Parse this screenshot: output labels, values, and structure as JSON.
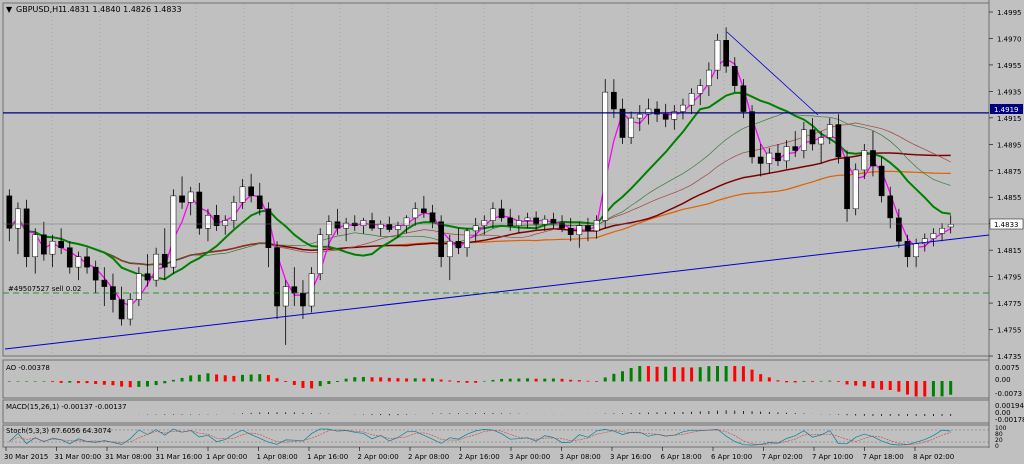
{
  "header": {
    "symbol": "GBPUSD,H1",
    "ohlc": "1.4831 1.4840 1.4826 1.4833"
  },
  "colors": {
    "background": "#c0c0c0",
    "grid": "#8f8f8f",
    "bull_body": "#ffffff",
    "bear_body": "#000000",
    "ma_fast": "#ff00ff",
    "ma_green": "#008000",
    "ma_darkred": "#800000",
    "ma_orange": "#e06000",
    "hline": "#000080",
    "trendline": "#0000cc",
    "ao_up": "#008000",
    "ao_down": "#ff0000",
    "price_tag_bg": "#ffffff"
  },
  "price_axis": {
    "ticks": [
      "1.4995",
      "1.4970",
      "1.4955",
      "1.4935",
      "1.4915",
      "1.4895",
      "1.4875",
      "1.4855",
      "1.4835",
      "1.4815",
      "1.4795",
      "1.4775",
      "1.4755",
      "1.4735"
    ],
    "hline_label": "1.4919",
    "current_label": "1.4833"
  },
  "time_axis": {
    "labels": [
      "30 Mar 2015",
      "31 Mar 00:00",
      "31 Mar 08:00",
      "31 Mar 16:00",
      "1 Apr 00:00",
      "1 Apr 08:00",
      "1 Apr 16:00",
      "2 Apr 00:00",
      "2 Apr 08:00",
      "2 Apr 16:00",
      "3 Apr 00:00",
      "3 Apr 08:00",
      "3 Apr 16:00",
      "6 Apr 18:00",
      "6 Apr 10:00",
      "7 Apr 02:00",
      "7 Apr 10:00",
      "7 Apr 18:00",
      "8 Apr 02:00"
    ]
  },
  "order_label": "#49507527 sell 0.02",
  "ao": {
    "title": "AO -0.00378",
    "ticks": [
      "0.0075",
      "0.00",
      "-0.0073"
    ]
  },
  "macd": {
    "title": "MACD(15,26,1) -0.00137 -0.00137",
    "ticks": [
      "0.00194",
      "0.00",
      "-0.00178"
    ]
  },
  "stoch": {
    "title": "Stoch(5,3,3) 67.6056 64.3074",
    "ticks": [
      "100",
      "80",
      "20",
      "0"
    ]
  },
  "chart_data": {
    "type": "candlestick",
    "price_range": [
      1.4733,
      1.5003
    ],
    "candles": [
      [
        1.4855,
        1.486,
        1.482,
        1.483
      ],
      [
        1.483,
        1.485,
        1.481,
        1.4845
      ],
      [
        1.4845,
        1.4852,
        1.48,
        1.4808
      ],
      [
        1.4808,
        1.483,
        1.4795,
        1.4825
      ],
      [
        1.4825,
        1.4835,
        1.4805,
        1.481
      ],
      [
        1.481,
        1.4825,
        1.48,
        1.482
      ],
      [
        1.482,
        1.483,
        1.481,
        1.4815
      ],
      [
        1.4815,
        1.482,
        1.4795,
        1.48
      ],
      [
        1.48,
        1.4812,
        1.479,
        1.4808
      ],
      [
        1.4808,
        1.4815,
        1.4795,
        1.48
      ],
      [
        1.48,
        1.4805,
        1.478,
        1.479
      ],
      [
        1.479,
        1.48,
        1.477,
        1.4785
      ],
      [
        1.4785,
        1.4795,
        1.4765,
        1.4775
      ],
      [
        1.4775,
        1.4785,
        1.4755,
        1.476
      ],
      [
        1.476,
        1.478,
        1.4755,
        1.4775
      ],
      [
        1.4775,
        1.48,
        1.477,
        1.4795
      ],
      [
        1.4795,
        1.481,
        1.4785,
        1.479
      ],
      [
        1.479,
        1.4815,
        1.4785,
        1.481
      ],
      [
        1.481,
        1.483,
        1.479,
        1.48
      ],
      [
        1.48,
        1.486,
        1.4795,
        1.4855
      ],
      [
        1.4855,
        1.487,
        1.4845,
        1.485
      ],
      [
        1.485,
        1.4862,
        1.484,
        1.4858
      ],
      [
        1.4858,
        1.4865,
        1.4825,
        1.483
      ],
      [
        1.483,
        1.4845,
        1.482,
        1.484
      ],
      [
        1.484,
        1.4848,
        1.4828,
        1.4832
      ],
      [
        1.4832,
        1.484,
        1.4825,
        1.4836
      ],
      [
        1.4836,
        1.4855,
        1.483,
        1.485
      ],
      [
        1.485,
        1.4868,
        1.4845,
        1.4862
      ],
      [
        1.4862,
        1.4872,
        1.485,
        1.4855
      ],
      [
        1.4855,
        1.4865,
        1.484,
        1.4845
      ],
      [
        1.4845,
        1.485,
        1.48,
        1.4815
      ],
      [
        1.4815,
        1.482,
        1.476,
        1.477
      ],
      [
        1.477,
        1.479,
        1.474,
        1.4785
      ],
      [
        1.4785,
        1.48,
        1.477,
        1.478
      ],
      [
        1.478,
        1.479,
        1.476,
        1.477
      ],
      [
        1.477,
        1.48,
        1.4765,
        1.4795
      ],
      [
        1.4795,
        1.483,
        1.479,
        1.4825
      ],
      [
        1.4825,
        1.484,
        1.4815,
        1.4835
      ],
      [
        1.4835,
        1.4845,
        1.4825,
        1.483
      ],
      [
        1.483,
        1.4838,
        1.482,
        1.4834
      ],
      [
        1.4834,
        1.484,
        1.4828,
        1.4832
      ],
      [
        1.4832,
        1.4838,
        1.4826,
        1.4836
      ],
      [
        1.4836,
        1.4842,
        1.4828,
        1.483
      ],
      [
        1.483,
        1.4836,
        1.4824,
        1.4833
      ],
      [
        1.4833,
        1.4839,
        1.4827,
        1.4829
      ],
      [
        1.4829,
        1.4835,
        1.4823,
        1.4832
      ],
      [
        1.4832,
        1.484,
        1.4826,
        1.4838
      ],
      [
        1.4838,
        1.485,
        1.4832,
        1.4845
      ],
      [
        1.4845,
        1.4855,
        1.4838,
        1.4842
      ],
      [
        1.4842,
        1.4848,
        1.483,
        1.4835
      ],
      [
        1.4835,
        1.484,
        1.48,
        1.4808
      ],
      [
        1.4808,
        1.4825,
        1.479,
        1.482
      ],
      [
        1.482,
        1.483,
        1.481,
        1.4815
      ],
      [
        1.4815,
        1.483,
        1.4808,
        1.4828
      ],
      [
        1.4828,
        1.4838,
        1.482,
        1.4832
      ],
      [
        1.4832,
        1.484,
        1.4825,
        1.4836
      ],
      [
        1.4836,
        1.485,
        1.483,
        1.4845
      ],
      [
        1.4845,
        1.4852,
        1.4835,
        1.4838
      ],
      [
        1.4838,
        1.4845,
        1.4828,
        1.4832
      ],
      [
        1.4832,
        1.484,
        1.4826,
        1.4836
      ],
      [
        1.4836,
        1.4842,
        1.483,
        1.4838
      ],
      [
        1.4838,
        1.4843,
        1.4829,
        1.4833
      ],
      [
        1.4833,
        1.484,
        1.4828,
        1.4837
      ],
      [
        1.4837,
        1.4842,
        1.483,
        1.4834
      ],
      [
        1.4834,
        1.484,
        1.4827,
        1.483
      ],
      [
        1.483,
        1.4838,
        1.482,
        1.4825
      ],
      [
        1.4825,
        1.4835,
        1.4815,
        1.4832
      ],
      [
        1.4832,
        1.4838,
        1.482,
        1.4828
      ],
      [
        1.4828,
        1.484,
        1.4822,
        1.4836
      ],
      [
        1.4836,
        1.4945,
        1.483,
        1.4935
      ],
      [
        1.4935,
        1.4945,
        1.4915,
        1.4922
      ],
      [
        1.4922,
        1.493,
        1.4895,
        1.49
      ],
      [
        1.49,
        1.492,
        1.4895,
        1.4915
      ],
      [
        1.4915,
        1.4925,
        1.4905,
        1.4918
      ],
      [
        1.4918,
        1.493,
        1.491,
        1.4922
      ],
      [
        1.4922,
        1.4928,
        1.4912,
        1.4918
      ],
      [
        1.4918,
        1.4926,
        1.4908,
        1.4914
      ],
      [
        1.4914,
        1.4925,
        1.4906,
        1.492
      ],
      [
        1.492,
        1.493,
        1.4914,
        1.4925
      ],
      [
        1.4925,
        1.4938,
        1.4918,
        1.4934
      ],
      [
        1.4934,
        1.4945,
        1.4925,
        1.494
      ],
      [
        1.494,
        1.4958,
        1.4932,
        1.4952
      ],
      [
        1.4952,
        1.498,
        1.4945,
        1.4975
      ],
      [
        1.4975,
        1.4985,
        1.495,
        1.4955
      ],
      [
        1.4955,
        1.4962,
        1.4935,
        1.494
      ],
      [
        1.494,
        1.4945,
        1.4915,
        1.492
      ],
      [
        1.492,
        1.4925,
        1.488,
        1.4885
      ],
      [
        1.4885,
        1.4895,
        1.487,
        1.488
      ],
      [
        1.488,
        1.4892,
        1.4872,
        1.4888
      ],
      [
        1.4888,
        1.4895,
        1.4878,
        1.4882
      ],
      [
        1.4882,
        1.4898,
        1.4876,
        1.4893
      ],
      [
        1.4893,
        1.4905,
        1.4885,
        1.489
      ],
      [
        1.489,
        1.4912,
        1.4884,
        1.4906
      ],
      [
        1.4906,
        1.4915,
        1.489,
        1.4895
      ],
      [
        1.4895,
        1.4905,
        1.488,
        1.49
      ],
      [
        1.49,
        1.4915,
        1.4895,
        1.491
      ],
      [
        1.491,
        1.4918,
        1.488,
        1.4885
      ],
      [
        1.4885,
        1.489,
        1.4835,
        1.4845
      ],
      [
        1.4845,
        1.488,
        1.484,
        1.4875
      ],
      [
        1.4875,
        1.4895,
        1.4868,
        1.489
      ],
      [
        1.489,
        1.4905,
        1.487,
        1.4878
      ],
      [
        1.4878,
        1.4885,
        1.485,
        1.4855
      ],
      [
        1.4855,
        1.4862,
        1.483,
        1.4838
      ],
      [
        1.4838,
        1.4845,
        1.4815,
        1.482
      ],
      [
        1.482,
        1.4825,
        1.48,
        1.4808
      ],
      [
        1.4808,
        1.4822,
        1.48,
        1.4818
      ],
      [
        1.4818,
        1.4826,
        1.4812,
        1.4822
      ],
      [
        1.4822,
        1.483,
        1.4816,
        1.4826
      ],
      [
        1.4826,
        1.4834,
        1.482,
        1.483
      ],
      [
        1.4831,
        1.484,
        1.4826,
        1.4833
      ]
    ],
    "horizontal_line": 1.4919
  }
}
